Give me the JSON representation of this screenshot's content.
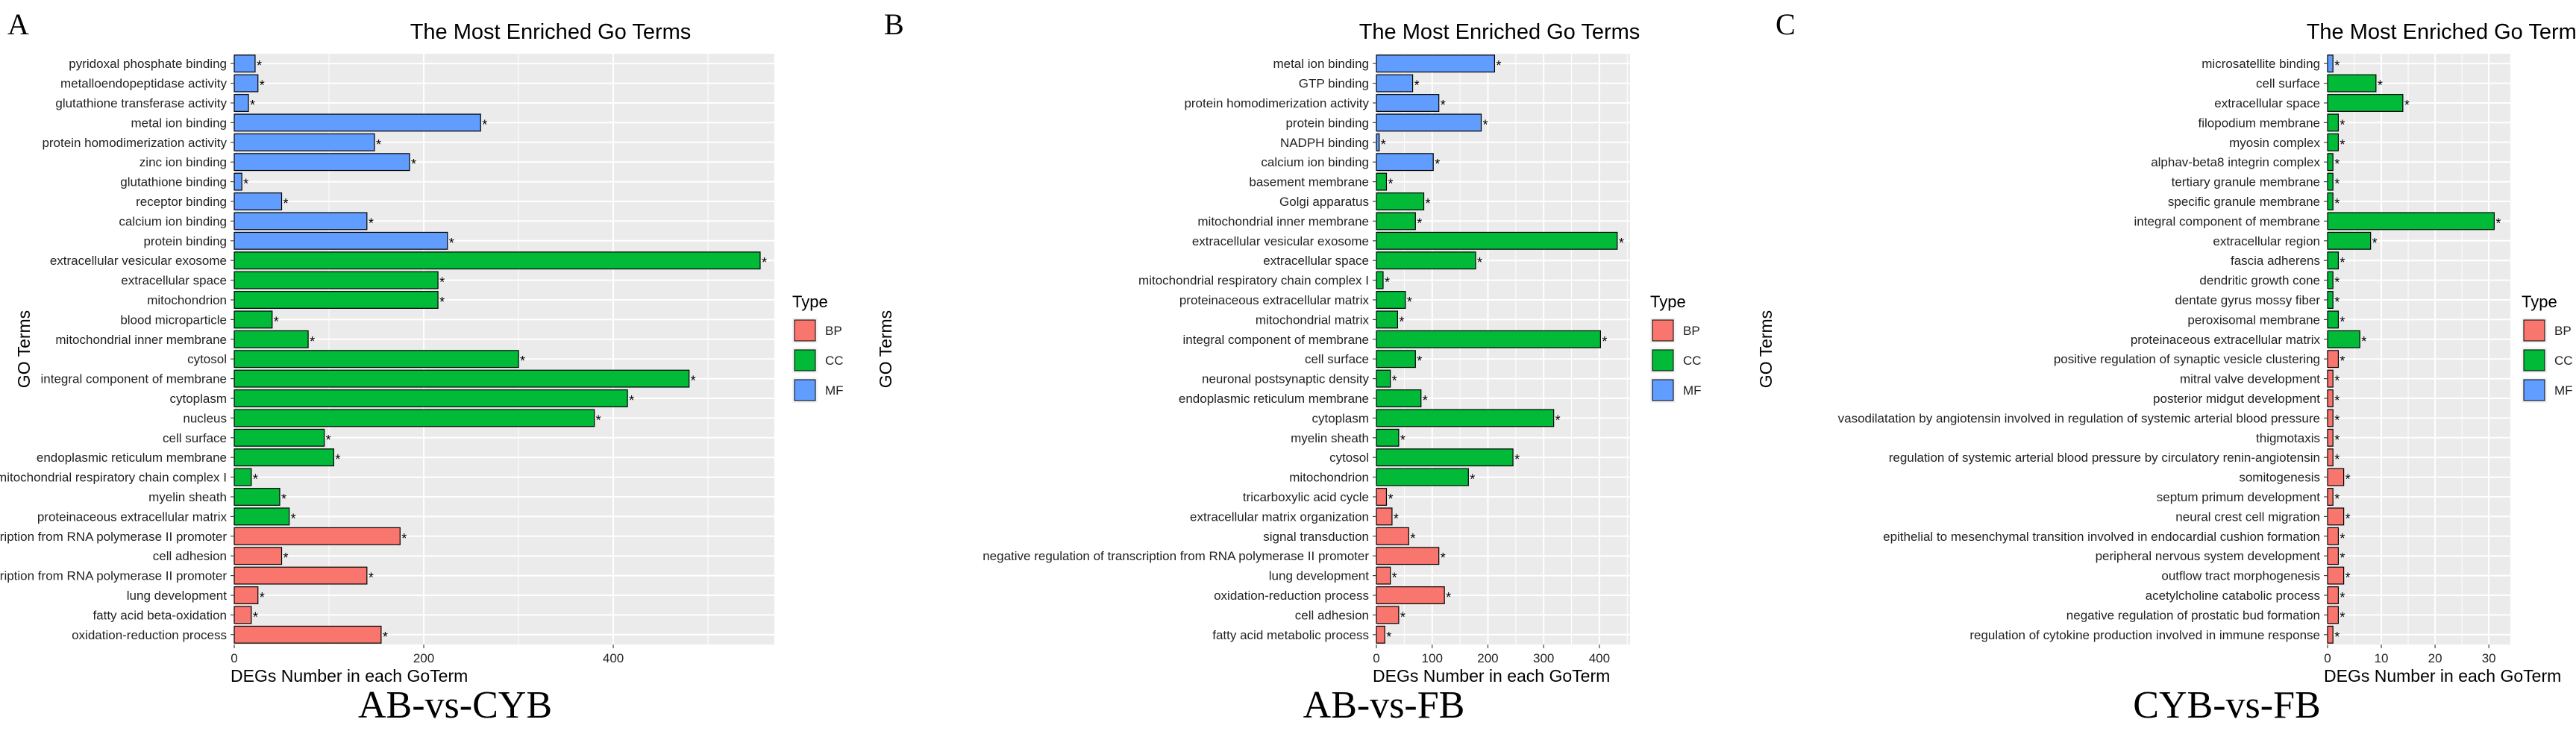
{
  "colors": {
    "BP": "#f8766d",
    "CC": "#00ba38",
    "MF": "#619cff",
    "panel_bg": "#ebebeb",
    "grid": "#ffffff"
  },
  "legend": {
    "title": "Type",
    "items": [
      "BP",
      "CC",
      "MF"
    ]
  },
  "chart_data": [
    {
      "type": "bar",
      "panel": "A",
      "title": "The Most Enriched Go Terms",
      "caption": "AB-vs-CYB",
      "xlabel": "DEGs Number in each GoTerm",
      "ylabel": "GO Terms",
      "xlim": [
        0,
        570
      ],
      "xticks": [
        0,
        200,
        400
      ],
      "categories": [
        "pyridoxal phosphate binding",
        "metalloendopeptidase activity",
        "glutathione transferase activity",
        "metal ion binding",
        "protein homodimerization activity",
        "zinc ion binding",
        "glutathione binding",
        "receptor binding",
        "calcium ion binding",
        "protein binding",
        "extracellular vesicular exosome",
        "extracellular space",
        "mitochondrion",
        "blood microparticle",
        "mitochondrial inner membrane",
        "cytosol",
        "integral component of membrane",
        "cytoplasm",
        "nucleus",
        "cell surface",
        "endoplasmic reticulum membrane",
        "mitochondrial respiratory chain complex I",
        "myelin sheath",
        "proteinaceous extracellular matrix",
        "positive regulation of transcription from RNA polymerase II promoter",
        "cell adhesion",
        "negative regulation of transcription from RNA polymerase II promoter",
        "lung development",
        "fatty acid beta-oxidation",
        "oxidation-reduction process"
      ],
      "values": [
        22,
        25,
        15,
        260,
        148,
        185,
        8,
        50,
        140,
        225,
        555,
        215,
        215,
        40,
        78,
        300,
        480,
        415,
        380,
        95,
        105,
        18,
        48,
        58,
        175,
        50,
        140,
        25,
        18,
        155
      ],
      "types": [
        "MF",
        "MF",
        "MF",
        "MF",
        "MF",
        "MF",
        "MF",
        "MF",
        "MF",
        "MF",
        "CC",
        "CC",
        "CC",
        "CC",
        "CC",
        "CC",
        "CC",
        "CC",
        "CC",
        "CC",
        "CC",
        "CC",
        "CC",
        "CC",
        "BP",
        "BP",
        "BP",
        "BP",
        "BP",
        "BP"
      ]
    },
    {
      "type": "bar",
      "panel": "B",
      "title": "The Most Enriched Go Terms",
      "caption": "AB-vs-FB",
      "xlabel": "DEGs Number in each GoTerm",
      "ylabel": "GO Terms",
      "xlim": [
        0,
        455
      ],
      "xticks": [
        0,
        100,
        200,
        300,
        400
      ],
      "categories": [
        "metal ion binding",
        "GTP binding",
        "protein homodimerization activity",
        "protein binding",
        "NADPH binding",
        "calcium ion binding",
        "basement membrane",
        "Golgi apparatus",
        "mitochondrial inner membrane",
        "extracellular vesicular exosome",
        "extracellular space",
        "mitochondrial respiratory chain complex I",
        "proteinaceous extracellular matrix",
        "mitochondrial matrix",
        "integral component of membrane",
        "cell surface",
        "neuronal postsynaptic density",
        "endoplasmic reticulum membrane",
        "cytoplasm",
        "myelin sheath",
        "cytosol",
        "mitochondrion",
        "tricarboxylic acid cycle",
        "extracellular matrix organization",
        "signal transduction",
        "negative regulation of transcription from RNA polymerase II promoter",
        "lung development",
        "oxidation-reduction process",
        "cell adhesion",
        "fatty acid metabolic process"
      ],
      "values": [
        212,
        65,
        112,
        188,
        5,
        102,
        18,
        85,
        70,
        432,
        178,
        12,
        52,
        38,
        402,
        70,
        25,
        80,
        318,
        40,
        245,
        165,
        18,
        28,
        58,
        112,
        25,
        122,
        40,
        15
      ],
      "types": [
        "MF",
        "MF",
        "MF",
        "MF",
        "MF",
        "MF",
        "CC",
        "CC",
        "CC",
        "CC",
        "CC",
        "CC",
        "CC",
        "CC",
        "CC",
        "CC",
        "CC",
        "CC",
        "CC",
        "CC",
        "CC",
        "CC",
        "BP",
        "BP",
        "BP",
        "BP",
        "BP",
        "BP",
        "BP",
        "BP"
      ]
    },
    {
      "type": "bar",
      "panel": "C",
      "title": "The Most Enriched Go Terms",
      "caption": "CYB-vs-FB",
      "xlabel": "DEGs Number in each GoTerm",
      "ylabel": "GO Terms",
      "xlim": [
        0,
        34
      ],
      "xticks": [
        0,
        10,
        20,
        30
      ],
      "categories": [
        "microsatellite binding",
        "cell surface",
        "extracellular space",
        "filopodium membrane",
        "myosin complex",
        "alphav-beta8 integrin complex",
        "tertiary granule membrane",
        "specific granule membrane",
        "integral component of membrane",
        "extracellular region",
        "fascia adherens",
        "dendritic growth cone",
        "dentate gyrus mossy fiber",
        "peroxisomal membrane",
        "proteinaceous extracellular matrix",
        "positive regulation of synaptic vesicle clustering",
        "mitral valve development",
        "posterior midgut development",
        "vasodilatation by angiotensin involved in regulation of systemic arterial blood pressure",
        "thigmotaxis",
        "regulation of systemic arterial blood pressure by circulatory renin-angiotensin",
        "somitogenesis",
        "septum primum development",
        "neural crest cell migration",
        "epithelial to mesenchymal transition involved in endocardial cushion formation",
        "peripheral nervous system development",
        "outflow tract morphogenesis",
        "acetylcholine catabolic process",
        "negative regulation of prostatic bud formation",
        "regulation of cytokine production involved in immune response"
      ],
      "values": [
        1,
        9,
        14,
        2,
        2,
        1,
        1,
        1,
        31,
        8,
        2,
        1,
        1,
        2,
        6,
        2,
        1,
        1,
        1,
        1,
        1,
        3,
        1,
        3,
        2,
        2,
        3,
        2,
        2,
        1
      ],
      "types": [
        "MF",
        "CC",
        "CC",
        "CC",
        "CC",
        "CC",
        "CC",
        "CC",
        "CC",
        "CC",
        "CC",
        "CC",
        "CC",
        "CC",
        "CC",
        "BP",
        "BP",
        "BP",
        "BP",
        "BP",
        "BP",
        "BP",
        "BP",
        "BP",
        "BP",
        "BP",
        "BP",
        "BP",
        "BP",
        "BP"
      ]
    }
  ]
}
